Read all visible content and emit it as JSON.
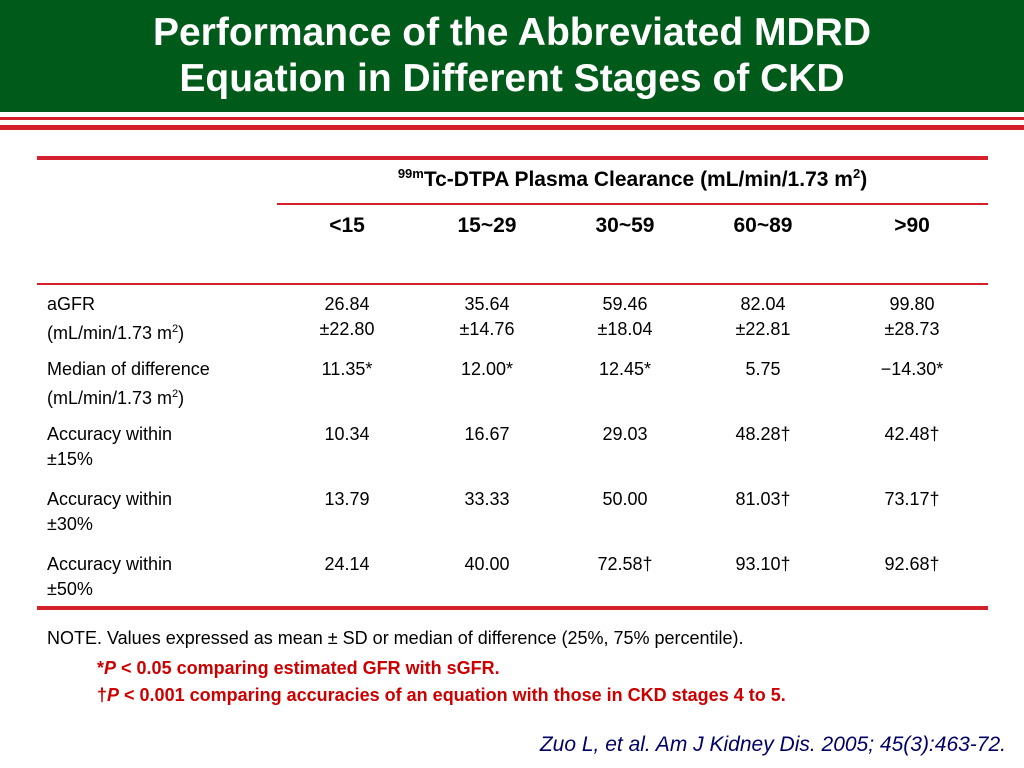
{
  "title": {
    "line1": "Performance of the Abbreviated MDRD",
    "line2": "Equation in Different Stages of CKD"
  },
  "table": {
    "header": {
      "sup": "99m",
      "text": "Tc-DTPA Plasma Clearance (mL/min/1.73 m",
      "sup2": "2",
      "close": ")"
    },
    "columns": [
      "<15",
      "15~29",
      "30~59",
      "60~89",
      ">90"
    ],
    "rows": [
      {
        "label1": "aGFR",
        "label2": " (mL/min/1.73 m",
        "label2_sup": "2",
        "label2_close": ")",
        "cells": [
          {
            "l1": "26.84",
            "l2": "±22.80"
          },
          {
            "l1": "35.64",
            "l2": "±14.76"
          },
          {
            "l1": "59.46",
            "l2": "±18.04"
          },
          {
            "l1": "82.04",
            "l2": "±22.81"
          },
          {
            "l1": "99.80",
            "l2": "±28.73"
          }
        ]
      },
      {
        "label1": "Median of difference",
        "label2": "(mL/min/1.73 m",
        "label2_sup": "2",
        "label2_close": ")",
        "cells": [
          {
            "l1": "11.35*"
          },
          {
            "l1": "12.00*"
          },
          {
            "l1": "12.45*"
          },
          {
            "l1": "5.75"
          },
          {
            "l1": "−14.30*"
          }
        ]
      },
      {
        "label1": "Accuracy within",
        "label2": "±15%",
        "cells": [
          {
            "l1": "10.34"
          },
          {
            "l1": "16.67"
          },
          {
            "l1": "29.03"
          },
          {
            "l1": "48.28†"
          },
          {
            "l1": "42.48†"
          }
        ]
      },
      {
        "label1": "Accuracy within",
        "label2": "±30%",
        "cells": [
          {
            "l1": "13.79"
          },
          {
            "l1": "33.33"
          },
          {
            "l1": "50.00"
          },
          {
            "l1": "81.03†"
          },
          {
            "l1": "73.17†"
          }
        ]
      },
      {
        "label1": "Accuracy within",
        "label2": "±50%",
        "cells": [
          {
            "l1": "24.14"
          },
          {
            "l1": "40.00"
          },
          {
            "l1": "72.58†"
          },
          {
            "l1": "93.10†"
          },
          {
            "l1": "92.68†"
          }
        ]
      }
    ]
  },
  "notes": {
    "main": "NOTE. Values expressed as mean ± SD or median of difference (25%, 75% percentile).",
    "fn1_mark": "*",
    "fn1_p": "P",
    "fn1_text": " < 0.05 comparing estimated GFR with sGFR.",
    "fn2_mark": "†",
    "fn2_p": "P",
    "fn2_text": " < 0.001 comparing accuracies of an equation with those in CKD stages 4 to 5."
  },
  "citation": "Zuo L, et al. Am J Kidney Dis. 2005; 45(3):463-72.",
  "colors": {
    "header_green": "#005a1a",
    "rule_red": "#d4202c",
    "footnote_red": "#cc0000",
    "citation_navy": "#000066"
  }
}
